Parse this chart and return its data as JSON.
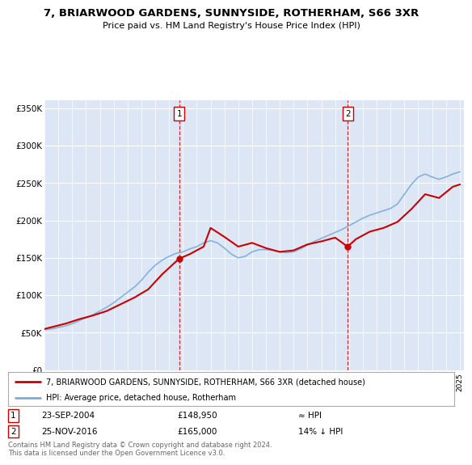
{
  "title": "7, BRIARWOOD GARDENS, SUNNYSIDE, ROTHERHAM, S66 3XR",
  "subtitle": "Price paid vs. HM Land Registry's House Price Index (HPI)",
  "plot_bg_color": "#dce6f5",
  "ylim": [
    0,
    360000
  ],
  "yticks": [
    0,
    50000,
    100000,
    150000,
    200000,
    250000,
    300000,
    350000
  ],
  "ytick_labels": [
    "£0",
    "£50K",
    "£100K",
    "£150K",
    "£200K",
    "£250K",
    "£300K",
    "£350K"
  ],
  "legend_line1": "7, BRIARWOOD GARDENS, SUNNYSIDE, ROTHERHAM, S66 3XR (detached house)",
  "legend_line2": "HPI: Average price, detached house, Rotherham",
  "sale1_date": "23-SEP-2004",
  "sale1_price": 148950,
  "sale1_label": "≈ HPI",
  "sale2_date": "25-NOV-2016",
  "sale2_price": 165000,
  "sale2_label": "14% ↓ HPI",
  "footnote": "Contains HM Land Registry data © Crown copyright and database right 2024.\nThis data is licensed under the Open Government Licence v3.0.",
  "red_color": "#cc0000",
  "blue_color": "#7aadda",
  "sale1_x": 2004.73,
  "sale2_x": 2016.9,
  "hpi_x": [
    1995.0,
    1995.5,
    1996.0,
    1996.5,
    1997.0,
    1997.5,
    1998.0,
    1998.5,
    1999.0,
    1999.5,
    2000.0,
    2000.5,
    2001.0,
    2001.5,
    2002.0,
    2002.5,
    2003.0,
    2003.5,
    2004.0,
    2004.5,
    2005.0,
    2005.5,
    2006.0,
    2006.5,
    2007.0,
    2007.5,
    2008.0,
    2008.5,
    2009.0,
    2009.5,
    2010.0,
    2010.5,
    2011.0,
    2011.5,
    2012.0,
    2012.5,
    2013.0,
    2013.5,
    2014.0,
    2014.5,
    2015.0,
    2015.5,
    2016.0,
    2016.5,
    2017.0,
    2017.5,
    2018.0,
    2018.5,
    2019.0,
    2019.5,
    2020.0,
    2020.5,
    2021.0,
    2021.5,
    2022.0,
    2022.5,
    2023.0,
    2023.5,
    2024.0,
    2024.5,
    2025.0
  ],
  "hpi_y": [
    54000,
    55000,
    57000,
    59000,
    62000,
    66000,
    70000,
    74000,
    79000,
    84000,
    90000,
    97000,
    104000,
    111000,
    120000,
    131000,
    140000,
    147000,
    152000,
    156000,
    158000,
    162000,
    165000,
    170000,
    173000,
    170000,
    163000,
    155000,
    150000,
    152000,
    158000,
    161000,
    161000,
    160000,
    158000,
    157000,
    158000,
    162000,
    167000,
    172000,
    176000,
    180000,
    184000,
    188000,
    193000,
    198000,
    203000,
    207000,
    210000,
    213000,
    216000,
    222000,
    235000,
    248000,
    258000,
    262000,
    258000,
    255000,
    258000,
    262000,
    265000
  ],
  "price_x": [
    1995.0,
    1996.5,
    1997.5,
    1998.5,
    1999.5,
    2000.5,
    2001.5,
    2002.5,
    2003.5,
    2004.73,
    2005.5,
    2006.5,
    2007.0,
    2008.0,
    2009.0,
    2010.0,
    2011.0,
    2012.0,
    2013.0,
    2014.0,
    2015.0,
    2016.0,
    2016.9,
    2017.5,
    2018.5,
    2019.5,
    2020.5,
    2021.5,
    2022.5,
    2023.5,
    2024.5,
    2025.0
  ],
  "price_y": [
    55000,
    62000,
    68000,
    73000,
    79000,
    88000,
    97000,
    108000,
    128000,
    148950,
    155000,
    165000,
    190000,
    178000,
    165000,
    170000,
    163000,
    158000,
    160000,
    168000,
    172000,
    177000,
    165000,
    175000,
    185000,
    190000,
    198000,
    215000,
    235000,
    230000,
    245000,
    248000
  ]
}
